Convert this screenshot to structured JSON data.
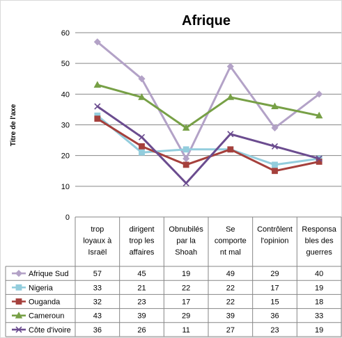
{
  "chart_data": {
    "type": "line",
    "title": "Afrique",
    "ylabel": "Titre de l'axe",
    "xlabel": "",
    "ylim": [
      0,
      60
    ],
    "yticks": [
      0,
      10,
      20,
      30,
      40,
      50,
      60
    ],
    "grid": true,
    "legend_placement": "data-table-below",
    "categories": [
      [
        "trop",
        "loyaux à",
        "Israël"
      ],
      [
        "dirigent",
        "trop les",
        "affaires"
      ],
      [
        "Obnubilés",
        "par la",
        "Shoah"
      ],
      [
        "Se",
        "comporte",
        "nt mal"
      ],
      [
        "Contrôlent",
        "l'opinion"
      ],
      [
        "Responsa",
        "bles des",
        "guerres"
      ]
    ],
    "series": [
      {
        "name": "Afrique Sud",
        "color": "#b3a2c7",
        "marker": "diamond",
        "values": [
          57,
          45,
          19,
          49,
          29,
          40
        ]
      },
      {
        "name": "Nigeria",
        "color": "#93cddd",
        "marker": "square",
        "values": [
          33,
          21,
          22,
          22,
          17,
          19
        ]
      },
      {
        "name": "Ouganda",
        "color": "#a5403c",
        "marker": "square",
        "values": [
          32,
          23,
          17,
          22,
          15,
          18
        ]
      },
      {
        "name": "Cameroun",
        "color": "#77a046",
        "marker": "triangle",
        "values": [
          43,
          39,
          29,
          39,
          36,
          33
        ]
      },
      {
        "name": "Côte d'ivoire",
        "color": "#6b4c8f",
        "marker": "x",
        "values": [
          36,
          26,
          11,
          27,
          23,
          19
        ]
      }
    ]
  }
}
